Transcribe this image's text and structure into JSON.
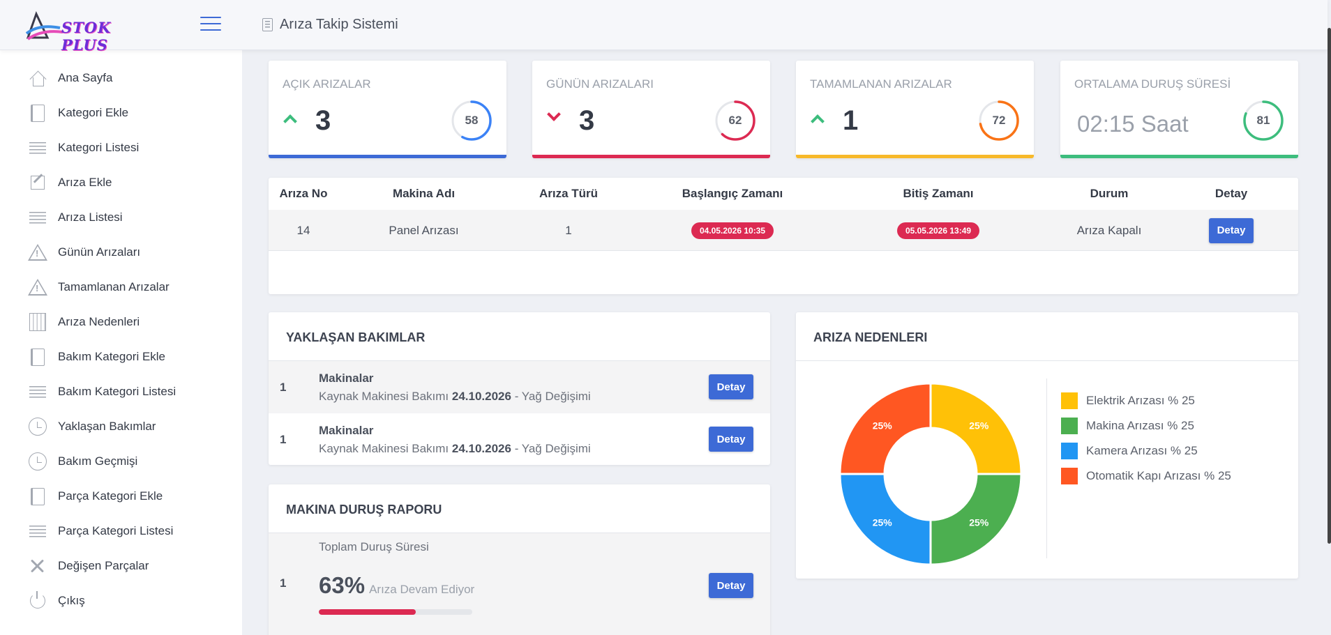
{
  "header": {
    "logo_text": "STOK PLUS",
    "title": "Arıza Takip Sistemi"
  },
  "sidebar": {
    "items": [
      {
        "label": "Ana Sayfa",
        "icon": "home-icon"
      },
      {
        "label": "Kategori Ekle",
        "icon": "book-icon"
      },
      {
        "label": "Kategori Listesi",
        "icon": "list-icon"
      },
      {
        "label": "Arıza Ekle",
        "icon": "edit-icon"
      },
      {
        "label": "Arıza Listesi",
        "icon": "list-icon"
      },
      {
        "label": "Günün Arızaları",
        "icon": "warning-icon"
      },
      {
        "label": "Tamamlanan Arızalar",
        "icon": "warning-icon"
      },
      {
        "label": "Arıza Nedenleri",
        "icon": "building-icon"
      },
      {
        "label": "Bakım Kategori Ekle",
        "icon": "book-icon"
      },
      {
        "label": "Bakım Kategori Listesi",
        "icon": "list-icon"
      },
      {
        "label": "Yaklaşan Bakımlar",
        "icon": "clock-icon"
      },
      {
        "label": "Bakım Geçmişi",
        "icon": "clock-icon"
      },
      {
        "label": "Parça Kategori Ekle",
        "icon": "book-icon"
      },
      {
        "label": "Parça Kategori Listesi",
        "icon": "list-icon"
      },
      {
        "label": "Değişen Parçalar",
        "icon": "tools-icon"
      },
      {
        "label": "Çıkış",
        "icon": "power-icon"
      }
    ]
  },
  "stats": [
    {
      "title": "AÇIK ARIZALAR",
      "value": "3",
      "trend": "up",
      "ring": "58",
      "color": "#3b82f6",
      "bar_color": "#3d6ad6"
    },
    {
      "title": "GÜNÜN ARIZALARI",
      "value": "3",
      "trend": "down",
      "ring": "62",
      "color": "#dc2a52",
      "bar_color": "#dc2a52"
    },
    {
      "title": "TAMAMLANAN ARIZALAR",
      "value": "1",
      "trend": "up",
      "ring": "72",
      "color": "#f97316",
      "bar_color": "#f7b92a"
    },
    {
      "title": "ORTALAMA DURUŞ SÜRESİ",
      "value": "02:15 Saat",
      "trend": "none",
      "ring": "81",
      "color": "#3dbd7d",
      "bar_color": "#3dbd7d"
    }
  ],
  "faults_table": {
    "headers": [
      "Arıza No",
      "Makina Adı",
      "Arıza Türü",
      "Başlangıç Zamanı",
      "Bitiş Zamanı",
      "Durum",
      "Detay"
    ],
    "rows": [
      {
        "no": "14",
        "machine": "Panel Arızası",
        "type": "1",
        "start": "04.05.2026 10:35",
        "end": "05.05.2026 13:49",
        "status": "Arıza Kapalı",
        "action": "Detay"
      }
    ]
  },
  "upcoming": {
    "title": "YAKLAŞAN BAKIMLAR",
    "rows": [
      {
        "num": "1",
        "name": "Makinalar",
        "desc_pre": "Kaynak Makinesi Bakımı",
        "date": "24.10.2026",
        "desc_post": "- Yağ Değişimi",
        "action": "Detay"
      },
      {
        "num": "1",
        "name": "Makinalar",
        "desc_pre": "Kaynak Makinesi Bakımı",
        "date": "24.10.2026",
        "desc_post": "- Yağ Değişimi",
        "action": "Detay"
      }
    ]
  },
  "downtime": {
    "title": "MAKINA DURUŞ RAPORU",
    "num": "1",
    "label": "Toplam Duruş Süresi",
    "percent": "63%",
    "status": "Arıza Devam Ediyor",
    "progress": 0.63,
    "action": "Detay"
  },
  "chart_panel": {
    "title": "ARIZA NEDENLERI"
  },
  "chart_data": {
    "type": "pie",
    "categories": [
      "Elektrik Arızası % 25",
      "Makina Arızası % 25",
      "Kamera Arızası % 25",
      "Otomatik Kapı Arızası % 25"
    ],
    "values": [
      25,
      25,
      25,
      25
    ],
    "labels": [
      "25%",
      "25%",
      "25%",
      "25%"
    ],
    "colors": [
      "#ffc107",
      "#4caf50",
      "#2196f3",
      "#ff5722"
    ],
    "legend": "right",
    "donut": true
  }
}
